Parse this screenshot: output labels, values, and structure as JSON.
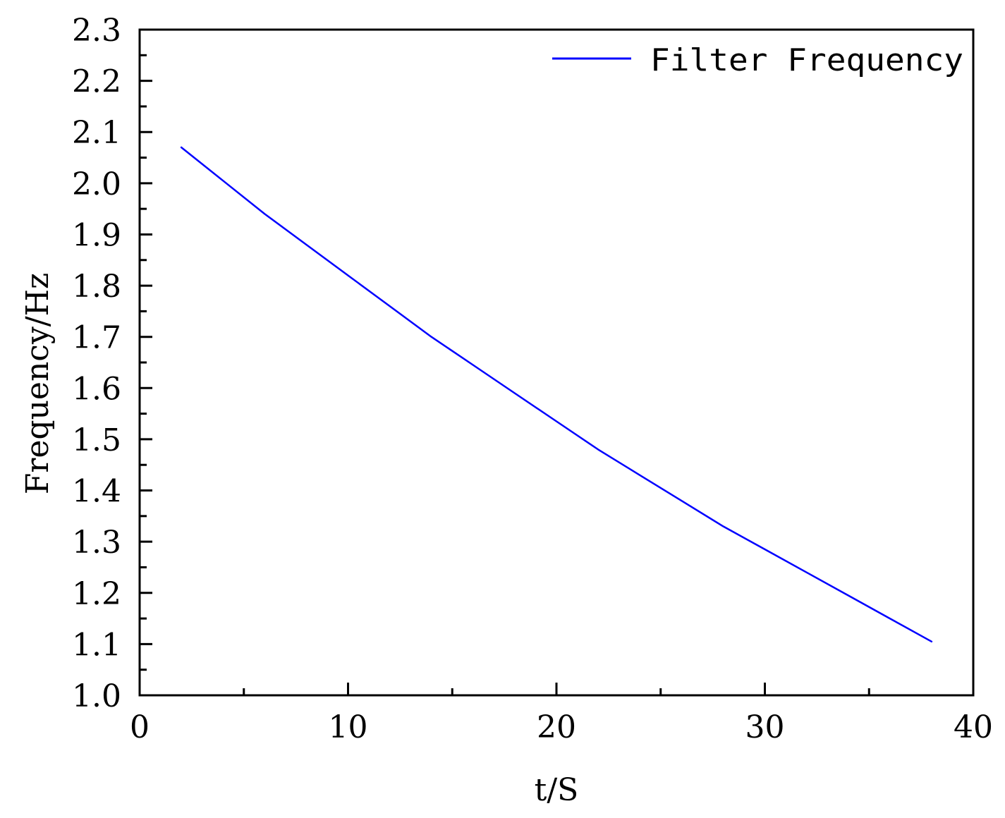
{
  "chart_data": {
    "type": "line",
    "title": "",
    "xlabel": "t/S",
    "ylabel": "Frequency/Hz",
    "xlim": [
      0,
      40
    ],
    "ylim": [
      1.0,
      2.3
    ],
    "x_ticks": [
      0,
      10,
      20,
      30,
      40
    ],
    "x_tick_labels": [
      "0",
      "10",
      "20",
      "30",
      "40"
    ],
    "y_ticks": [
      1.0,
      1.1,
      1.2,
      1.3,
      1.4,
      1.5,
      1.6,
      1.7,
      1.8,
      1.9,
      2.0,
      2.1,
      2.2,
      2.3
    ],
    "y_tick_labels": [
      "1.0",
      "1.1",
      "1.2",
      "1.3",
      "1.4",
      "1.5",
      "1.6",
      "1.7",
      "1.8",
      "1.9",
      "2.0",
      "2.1",
      "2.2",
      "2.3"
    ],
    "grid": false,
    "legend_position": "top-right",
    "series": [
      {
        "name": "Filter Frequency",
        "color": "#0000ff",
        "x": [
          2,
          4,
          6,
          8,
          10,
          12,
          14,
          16,
          18,
          20,
          22,
          24,
          26,
          28,
          30,
          32,
          34,
          36,
          38
        ],
        "y": [
          2.07,
          2.005,
          1.94,
          1.88,
          1.82,
          1.76,
          1.7,
          1.645,
          1.59,
          1.535,
          1.48,
          1.43,
          1.38,
          1.33,
          1.285,
          1.24,
          1.195,
          1.15,
          1.105
        ]
      }
    ]
  }
}
